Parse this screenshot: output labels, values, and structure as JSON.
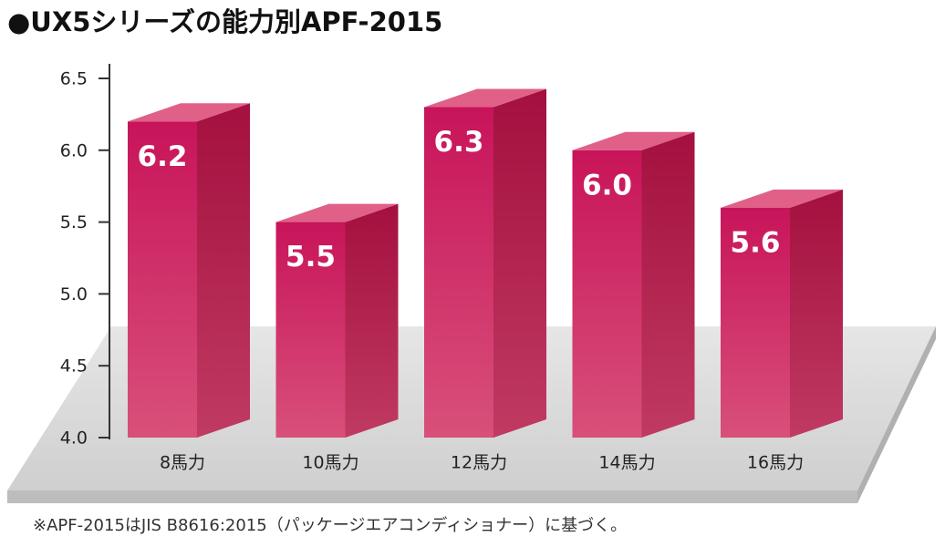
{
  "chart_data": {
    "type": "bar3d",
    "title": "●UX5シリーズの能力別APF-2015",
    "footnote": "※APF-2015はJIS B8616:2015（パッケージエアコンディショナー）に基づく。",
    "categories": [
      "8馬力",
      "10馬力",
      "12馬力",
      "14馬力",
      "16馬力"
    ],
    "values": [
      6.2,
      5.5,
      6.3,
      6.0,
      5.6
    ],
    "value_labels": [
      "6.2",
      "5.5",
      "6.3",
      "6.0",
      "5.6"
    ],
    "color": "#c8145a",
    "ylim": [
      4.0,
      6.5
    ],
    "yticks": [
      {
        "value": 4.0,
        "label": "4.0"
      },
      4.5,
      {
        "value": 5.0,
        "label": "5.0"
      },
      5.5,
      {
        "value": 6.0,
        "label": "6.0"
      },
      6.5
    ]
  }
}
